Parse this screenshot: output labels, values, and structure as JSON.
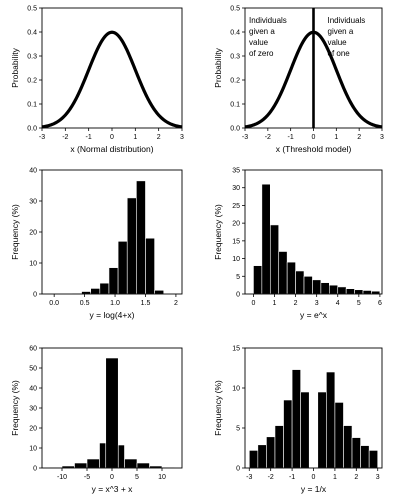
{
  "chart_data": [
    {
      "type": "line",
      "xlabel": "x (Normal distribution)",
      "ylabel": "Probability",
      "xlim": [
        -3,
        3
      ],
      "ylim": [
        0,
        0.5
      ],
      "xticks": [
        "-3",
        "-2",
        "-1",
        "0",
        "1",
        "2",
        "3"
      ],
      "yticks": [
        "0.0",
        "0.1",
        "0.2",
        "0.3",
        "0.4",
        "0.5"
      ],
      "curve": "standard normal density",
      "peak": 0.399
    },
    {
      "type": "line",
      "xlabel": "x (Threshold model)",
      "ylabel": "Probability",
      "xlim": [
        -3,
        3
      ],
      "ylim": [
        0,
        0.5
      ],
      "xticks": [
        "-3",
        "-2",
        "-1",
        "0",
        "1",
        "2",
        "3"
      ],
      "yticks": [
        "0.0",
        "0.1",
        "0.2",
        "0.3",
        "0.4",
        "0.5"
      ],
      "curve": "standard normal density",
      "peak": 0.399,
      "threshold_x": 0,
      "annotations": [
        [
          "Individuals",
          "given a",
          "value",
          "of zero"
        ],
        [
          "Individuals",
          "given a",
          "value",
          "of one"
        ]
      ]
    },
    {
      "type": "bar",
      "xlabel": "y = log(4+x)",
      "ylabel": "Frequency (%)",
      "xlim": [
        -0.2,
        2.1
      ],
      "ylim": [
        0,
        40
      ],
      "xticks": [
        "0.0",
        "0.5",
        "1.0",
        "1.5",
        "2"
      ],
      "yticks": [
        "0",
        "10",
        "20",
        "30",
        "40"
      ],
      "bin_edges": [
        0.3,
        0.45,
        0.6,
        0.75,
        0.9,
        1.05,
        1.2,
        1.35,
        1.5,
        1.65,
        1.8
      ],
      "values": [
        0.2,
        0.8,
        1.8,
        3.5,
        8.5,
        17,
        31,
        36.5,
        18,
        1.2
      ]
    },
    {
      "type": "bar",
      "xlabel": "y = e^x",
      "ylabel": "Frequency (%)",
      "xlim": [
        -0.4,
        6.1
      ],
      "ylim": [
        0,
        35
      ],
      "xticks": [
        "0",
        "1",
        "2",
        "3",
        "4",
        "5",
        "6"
      ],
      "yticks": [
        "0",
        "5",
        "10",
        "15",
        "20",
        "25",
        "30",
        "35"
      ],
      "bin_edges": [
        0,
        0.4,
        0.8,
        1.2,
        1.6,
        2.0,
        2.4,
        2.8,
        3.2,
        3.6,
        4.0,
        4.4,
        4.8,
        5.2,
        5.6,
        6.0
      ],
      "values": [
        8,
        31,
        19.5,
        12,
        9,
        6.5,
        5,
        4,
        3.2,
        2.5,
        2,
        1.5,
        1.2,
        1,
        0.8
      ]
    },
    {
      "type": "bar",
      "xlabel": "y = x^3 + x",
      "ylabel": "Frequency (%)",
      "xlim": [
        -14,
        14
      ],
      "ylim": [
        0,
        60
      ],
      "xticks": [
        "-10",
        "-5",
        "0",
        "5",
        "10"
      ],
      "yticks": [
        "0",
        "10",
        "20",
        "30",
        "40",
        "50",
        "60"
      ],
      "bin_edges": [
        -12.5,
        -10,
        -7.5,
        -5,
        -2.5,
        -1.25,
        1.25,
        2.5,
        5,
        7.5,
        10,
        12.5
      ],
      "values": [
        0.3,
        1,
        2.5,
        4.5,
        12.5,
        55,
        11.5,
        4.5,
        2.5,
        1,
        0.3
      ]
    },
    {
      "type": "bar",
      "xlabel": "y = 1/x",
      "ylabel": "Frequency (%)",
      "xlim": [
        -3.2,
        3.2
      ],
      "ylim": [
        0,
        15
      ],
      "xticks": [
        "-3",
        "-2",
        "-1",
        "0",
        "1",
        "2",
        "3"
      ],
      "yticks": [
        "0",
        "5",
        "10",
        "15"
      ],
      "bin_edges": [
        -3,
        -2.6,
        -2.2,
        -1.8,
        -1.4,
        -1.0,
        -0.6,
        -0.2,
        0.2,
        0.6,
        1.0,
        1.4,
        1.8,
        2.2,
        2.6,
        3.0
      ],
      "values": [
        2.2,
        2.9,
        3.9,
        5.3,
        8.5,
        12.3,
        9.5,
        0,
        9.5,
        12,
        8.2,
        5.3,
        3.8,
        2.8,
        2.2
      ]
    }
  ]
}
